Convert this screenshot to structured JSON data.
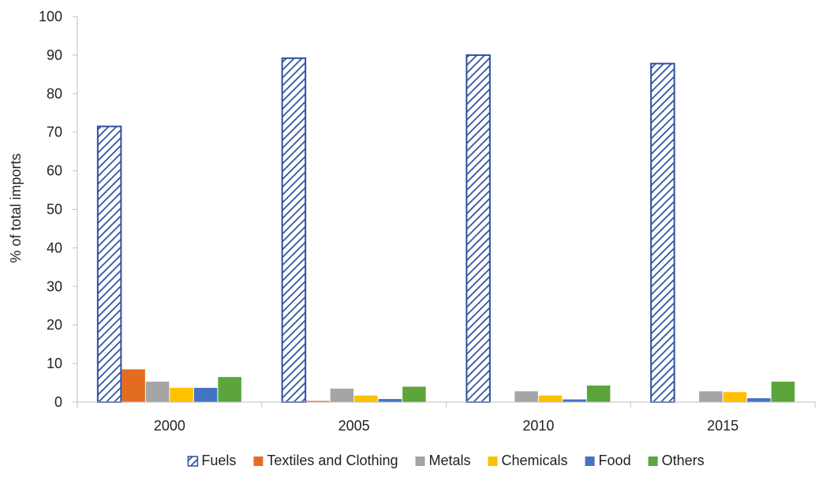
{
  "chart_data": {
    "type": "bar",
    "title": "",
    "xlabel": "",
    "ylabel": "% of total imports",
    "categories": [
      "2000",
      "2005",
      "2010",
      "2015"
    ],
    "ylim": [
      0,
      100
    ],
    "yticks": [
      0,
      10,
      20,
      30,
      40,
      50,
      60,
      70,
      80,
      90,
      100
    ],
    "grid": false,
    "legend_position": "bottom",
    "series": [
      {
        "name": "Fuels",
        "values": [
          71.5,
          89.2,
          90.0,
          87.8
        ],
        "color": "#2F4FA0",
        "pattern": "diagonal-hatch"
      },
      {
        "name": "Textiles and Clothing",
        "values": [
          8.5,
          0.3,
          0.0,
          0.0
        ],
        "color": "#E46C21"
      },
      {
        "name": "Metals",
        "values": [
          5.3,
          3.5,
          2.8,
          2.8
        ],
        "color": "#A5A5A5"
      },
      {
        "name": "Chemicals",
        "values": [
          3.7,
          1.7,
          1.7,
          2.6
        ],
        "color": "#FFC000"
      },
      {
        "name": "Food",
        "values": [
          3.7,
          0.8,
          0.7,
          1.0
        ],
        "color": "#4472C4"
      },
      {
        "name": "Others",
        "values": [
          6.5,
          4.0,
          4.3,
          5.3
        ],
        "color": "#5BA53A"
      }
    ]
  }
}
